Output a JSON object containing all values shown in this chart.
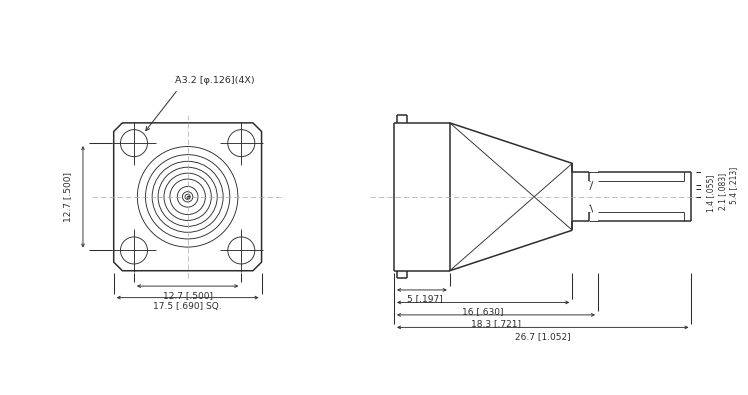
{
  "bg_color": "#ffffff",
  "line_color": "#2d2d2d",
  "lw": 1.1,
  "tlw": 0.65,
  "dlw": 0.75,
  "annotations": {
    "hole_label": "Ά3.2 [φ.126](4X)",
    "dim_127h": "12.7 [.500]",
    "dim_175": "17.5 [.690] SQ.",
    "dim_127v": "12.7 [.500]",
    "dim_5": "5 [.197]",
    "dim_16": "16 [.630]",
    "dim_183": "18.3 [.721]",
    "dim_267": "26.7 [1.052]",
    "dim_14": "1.4 [.055]",
    "dim_21": "2.1 [.083]",
    "dim_54": "5.4 [.213]"
  }
}
